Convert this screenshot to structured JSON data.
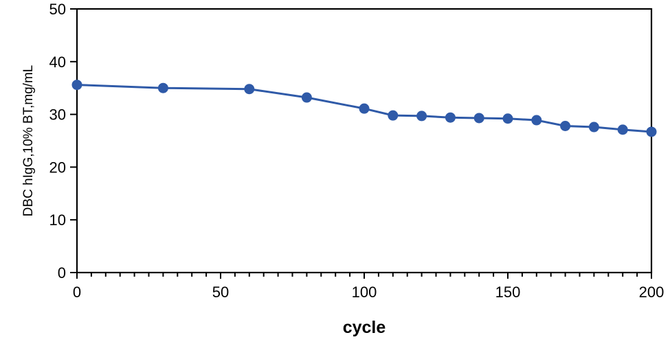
{
  "chart_data": {
    "type": "line",
    "title": "",
    "xlabel": "cycle",
    "ylabel": "DBC hIgG,10% BT,mg/mL",
    "xlim": [
      0,
      200
    ],
    "ylim": [
      0,
      50
    ],
    "x_ticks": [
      0,
      50,
      100,
      150,
      200
    ],
    "y_ticks": [
      0,
      10,
      20,
      30,
      40,
      50
    ],
    "x_minor_step": 5,
    "grid": false,
    "legend": "none",
    "series": [
      {
        "color": "#2f5aa8",
        "x": [
          0,
          30,
          60,
          80,
          100,
          110,
          120,
          130,
          140,
          150,
          160,
          170,
          180,
          190,
          200
        ],
        "y": [
          35.6,
          35.0,
          34.8,
          33.2,
          31.1,
          29.8,
          29.7,
          29.4,
          29.3,
          29.2,
          28.9,
          27.8,
          27.6,
          27.1,
          26.7
        ]
      }
    ]
  }
}
